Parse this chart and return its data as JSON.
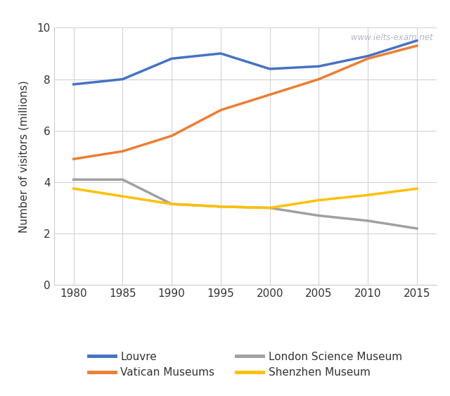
{
  "years": [
    1980,
    1985,
    1990,
    1995,
    2000,
    2005,
    2010,
    2015
  ],
  "louvre": [
    7.8,
    8.0,
    8.8,
    9.0,
    8.4,
    8.5,
    8.9,
    9.5
  ],
  "vatican": [
    4.9,
    5.2,
    5.8,
    6.8,
    7.4,
    8.0,
    8.8,
    9.3
  ],
  "london_science": [
    4.1,
    4.1,
    3.15,
    3.05,
    3.0,
    2.7,
    2.5,
    2.2
  ],
  "shenzhen": [
    3.75,
    3.45,
    3.15,
    3.05,
    3.0,
    3.3,
    3.5,
    3.75
  ],
  "louvre_color": "#4472C4",
  "vatican_color": "#ED7D31",
  "london_color": "#A0A0A0",
  "shenzhen_color": "#FFC000",
  "ylabel": "Number of visitors (millions)",
  "ylim": [
    0,
    10
  ],
  "yticks": [
    0,
    2,
    4,
    6,
    8,
    10
  ],
  "xticks": [
    1980,
    1985,
    1990,
    1995,
    2000,
    2005,
    2010,
    2015
  ],
  "legend_entries": [
    "Louvre",
    "Vatican Museums",
    "London Science Museum",
    "Shenzhen Museum"
  ],
  "watermark": "www.ielts-exam.net",
  "background_color": "#ffffff",
  "grid_color": "#d3d3d3",
  "line_width": 2.5
}
